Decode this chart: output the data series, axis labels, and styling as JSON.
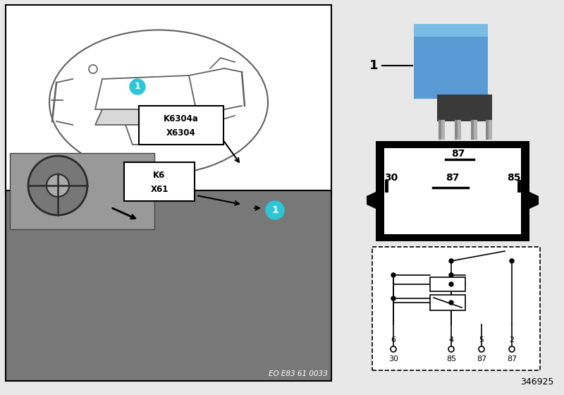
{
  "bg_color": "#e8e8e8",
  "white": "#ffffff",
  "black": "#000000",
  "cyan": "#2DC6D6",
  "photo_bg": "#787878",
  "inset_bg": "#999999",
  "relay_blue": "#5B9BD5",
  "relay_dark": "#3a3a3a",
  "pin_metal": "#b0b0b0",
  "part_number": "346925",
  "ref_code": "EO E83 61 0033",
  "label1a": "K6304a",
  "label1b": "X6304",
  "label2a": "K6",
  "label2b": "X61",
  "circuit_pin_nums": [
    "6",
    "4",
    "5",
    "2"
  ],
  "circuit_pin_names": [
    "30",
    "85",
    "87",
    "87"
  ],
  "connector_pin_top": "87",
  "connector_pins_mid": [
    "30",
    "87",
    "85"
  ]
}
